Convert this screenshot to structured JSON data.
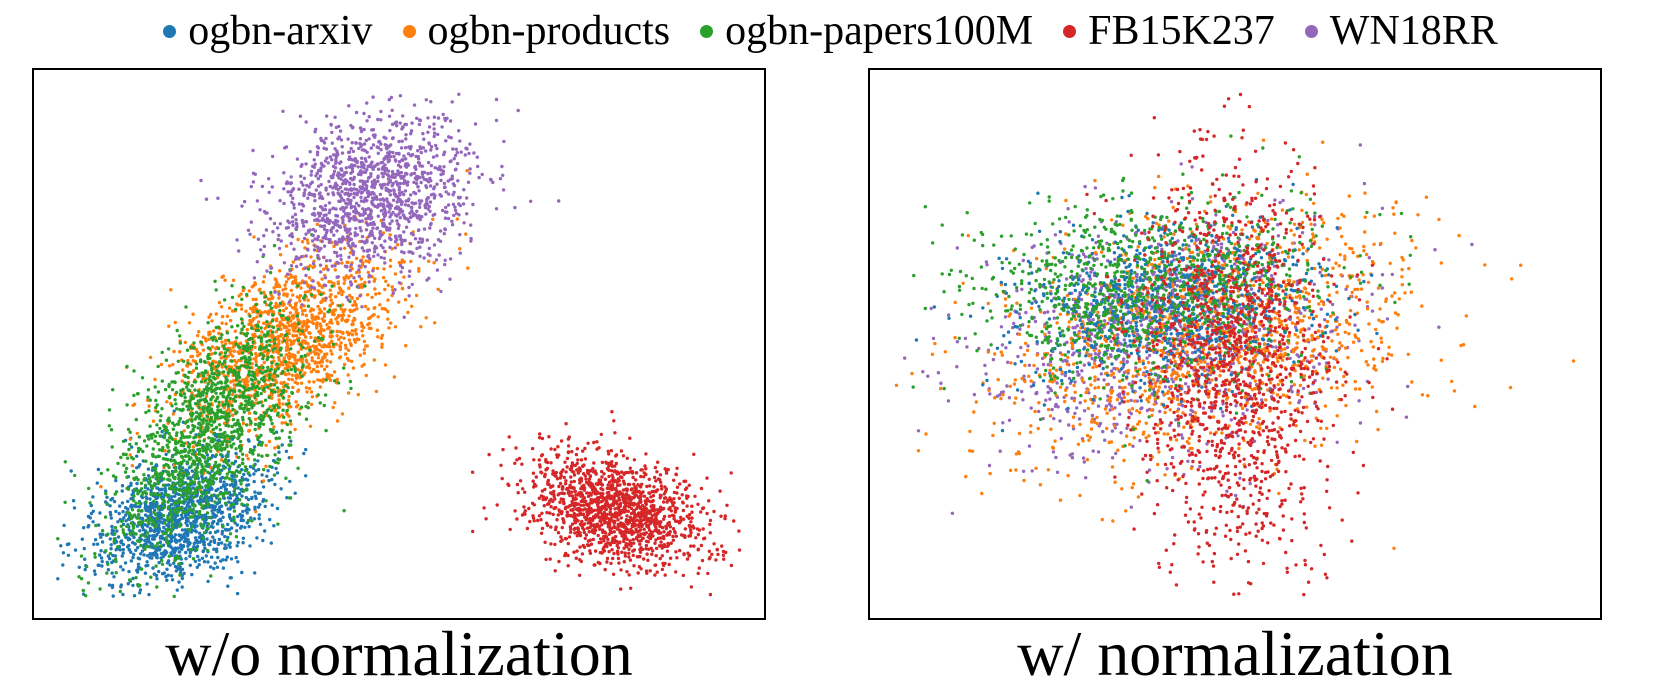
{
  "chart_data": {
    "type": "scatter",
    "legend": {
      "placement": "top",
      "series": [
        {
          "name": "ogbn-arxiv",
          "color": "#1f77b4"
        },
        {
          "name": "ogbn-products",
          "color": "#ff7f0e"
        },
        {
          "name": "ogbn-papers100M",
          "color": "#2ca02c"
        },
        {
          "name": "FB15K237",
          "color": "#d62728"
        },
        {
          "name": "WN18RR",
          "color": "#9467bd"
        }
      ]
    },
    "panels": [
      {
        "caption": "w/o normalization",
        "xlim": [
          0,
          100
        ],
        "ylim": [
          0,
          100
        ],
        "grid": false,
        "axes_ticks": false,
        "clusters": [
          {
            "series": "ogbn-arxiv",
            "cx": 19,
            "cy": 17,
            "sx": 6,
            "sy": 6.5,
            "rho": 0.35,
            "n": 1300
          },
          {
            "series": "ogbn-products",
            "cx": 34,
            "cy": 50,
            "sx": 8,
            "sy": 9,
            "rho": 0.55,
            "n": 1400
          },
          {
            "series": "ogbn-papers100M",
            "cx": 23,
            "cy": 33,
            "sx": 7,
            "sy": 12,
            "rho": 0.6,
            "n": 1500
          },
          {
            "series": "WN18RR",
            "cx": 46,
            "cy": 78,
            "sx": 7,
            "sy": 8,
            "rho": 0.2,
            "n": 1300
          },
          {
            "series": "FB15K237",
            "cx": 81,
            "cy": 18,
            "sx": 6.5,
            "sy": 5.5,
            "rho": -0.35,
            "n": 1400
          }
        ]
      },
      {
        "caption": "w/ normalization",
        "xlim": [
          0,
          100
        ],
        "ylim": [
          0,
          100
        ],
        "grid": false,
        "axes_ticks": false,
        "clusters": [
          {
            "series": "WN18RR",
            "cx": 40,
            "cy": 52,
            "sx": 13,
            "sy": 11,
            "rho": 0.2,
            "n": 1100
          },
          {
            "series": "ogbn-products",
            "cx": 46,
            "cy": 52,
            "sx": 15,
            "sy": 12,
            "rho": 0.25,
            "n": 1300
          },
          {
            "series": "ogbn-arxiv",
            "cx": 40,
            "cy": 58,
            "sx": 11,
            "sy": 8,
            "rho": 0.1,
            "n": 900
          },
          {
            "series": "ogbn-papers100M",
            "cx": 38,
            "cy": 60,
            "sx": 12,
            "sy": 9,
            "rho": 0.1,
            "n": 1000
          },
          {
            "series": "FB15K237",
            "cx": 50,
            "cy": 45,
            "sx": 7,
            "sy": 20,
            "rho": -0.15,
            "n": 1300
          }
        ]
      }
    ]
  }
}
